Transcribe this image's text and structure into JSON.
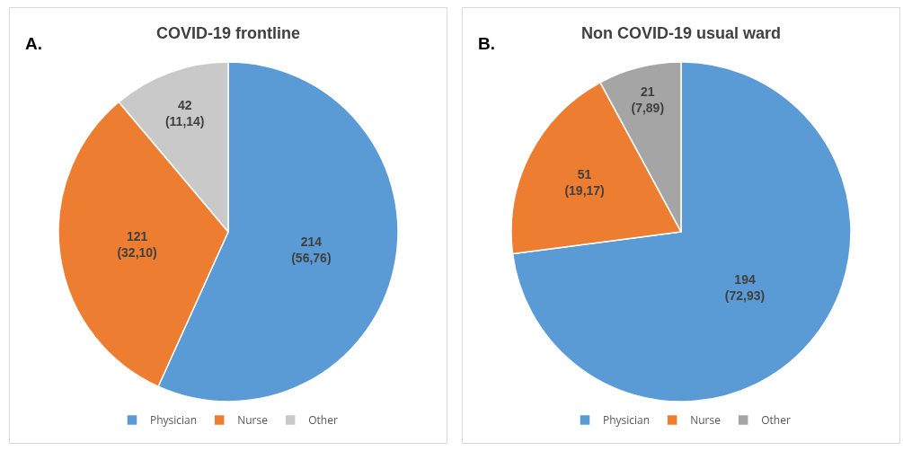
{
  "chart_data": [
    {
      "type": "pie",
      "title": "COVID-19 frontline",
      "annotations": [
        "A."
      ],
      "categories": [
        "Physician",
        "Nurse",
        "Other"
      ],
      "values": [
        214,
        121,
        42
      ],
      "colors": [
        "#5b9bd5",
        "#ed7d31",
        "#c9c9c9"
      ],
      "value_labels": [
        "214\n(56,76)",
        "121\n(32,10)",
        "42\n(11,14)"
      ],
      "legend": "bottom"
    },
    {
      "type": "pie",
      "title": "Non COVID-19 usual ward",
      "annotations": [
        "B."
      ],
      "categories": [
        "Physician",
        "Nurse",
        "Other"
      ],
      "values": [
        194,
        51,
        21
      ],
      "colors": [
        "#5b9bd5",
        "#ed7d31",
        "#a5a5a5"
      ],
      "value_labels": [
        "194\n(72,93)",
        "51\n(19,17)",
        "21\n(7,89)"
      ],
      "legend": "bottom"
    }
  ]
}
